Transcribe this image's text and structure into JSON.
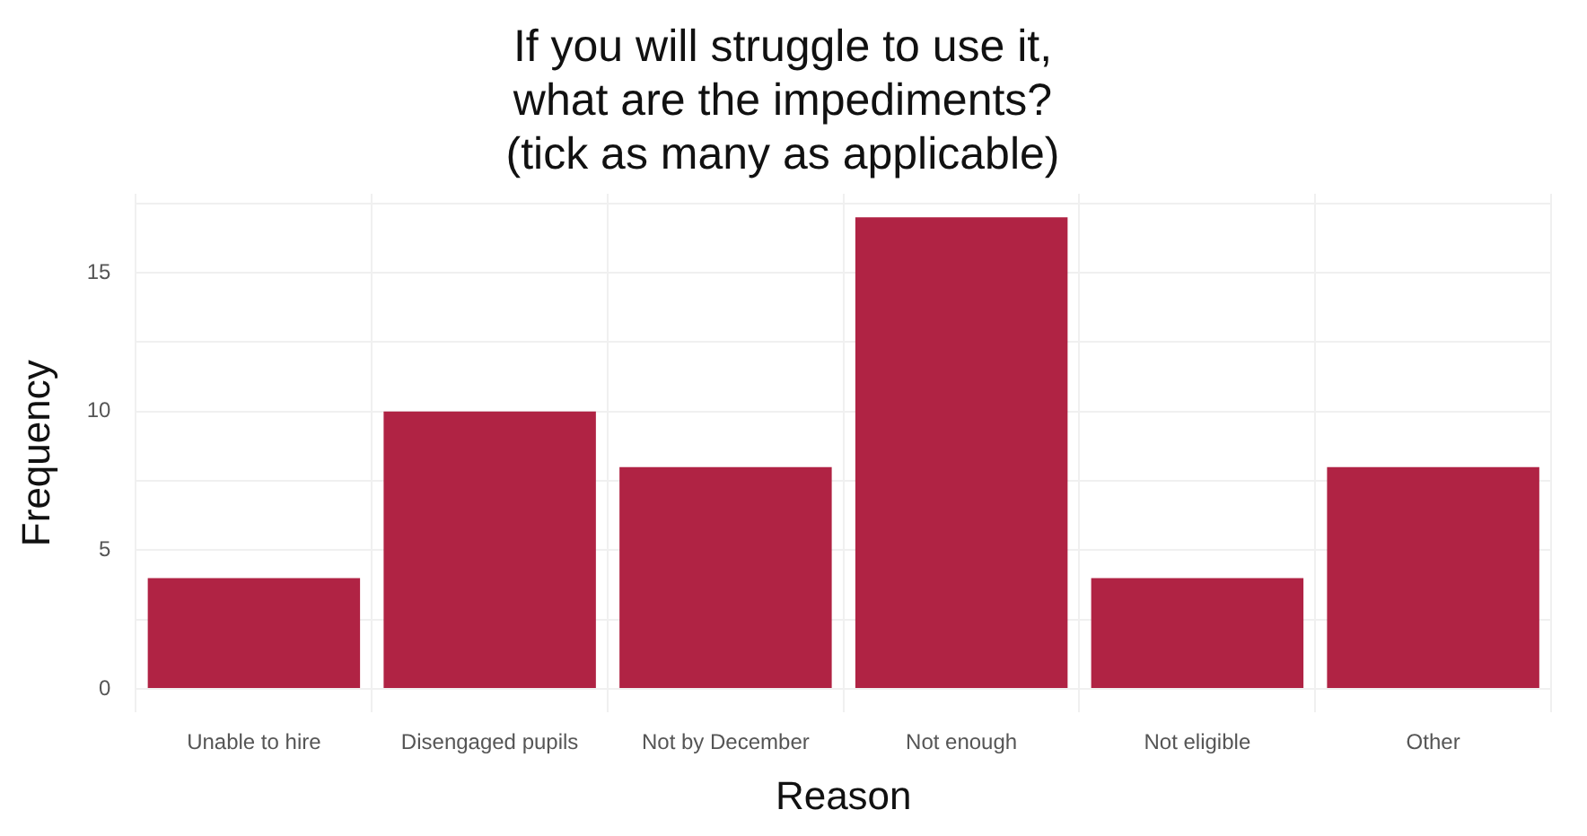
{
  "chart_data": {
    "type": "bar",
    "title": "If you will struggle to use it,\nwhat are the impediments?\n(tick as many as applicable)",
    "xlabel": "Reason",
    "ylabel": "Frequency",
    "categories": [
      "Unable to hire",
      "Disengaged pupils",
      "Not by December",
      "Not enough",
      "Not eligible",
      "Other"
    ],
    "values": [
      4,
      10,
      8,
      17,
      4,
      8
    ],
    "color": "#b02344",
    "ylim": [
      -0.85,
      17.85
    ],
    "yticks": [
      0,
      {
        "value": 2.5,
        "label": null
      },
      5,
      {
        "value": 7.5,
        "label": null
      },
      10,
      {
        "value": 12.5,
        "label": null
      },
      15,
      {
        "value": 17.5,
        "label": null
      }
    ],
    "grid": true
  }
}
